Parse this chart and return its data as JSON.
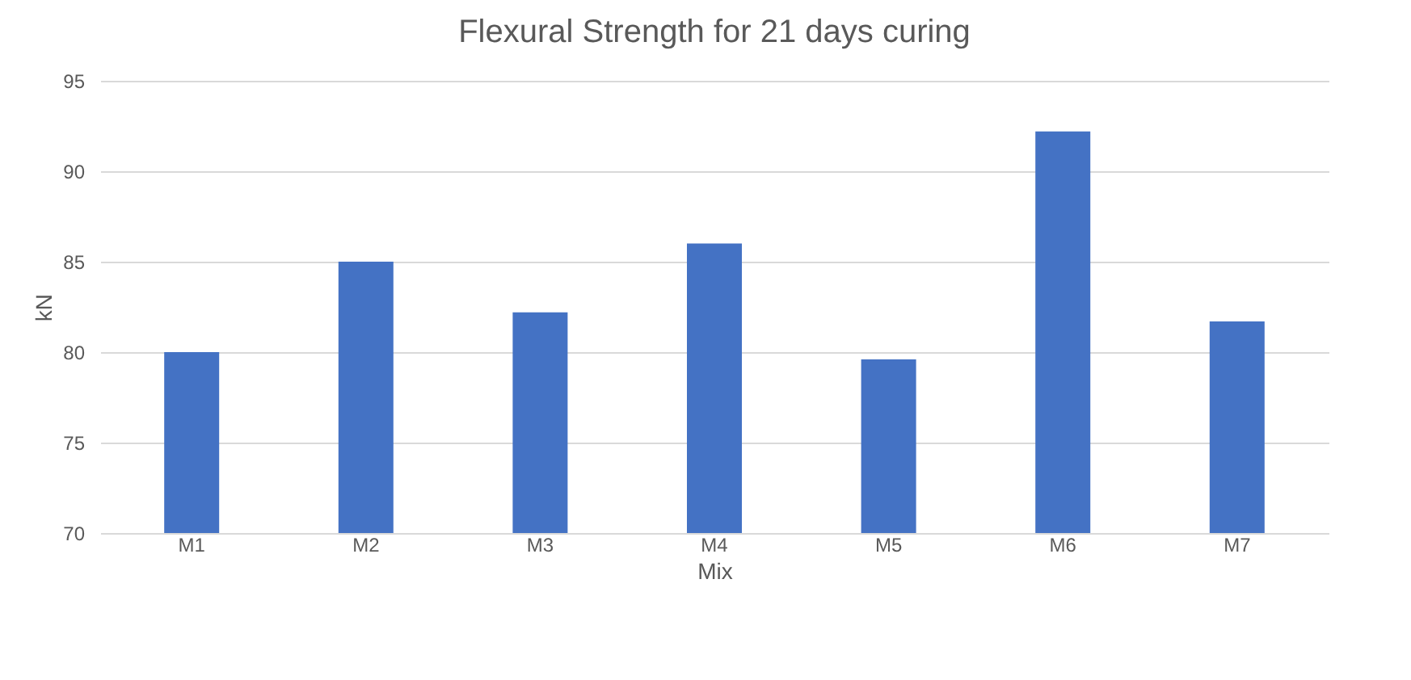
{
  "chart_data": {
    "type": "bar",
    "title": "Flexural Strength for 21 days curing",
    "xlabel": "Mix",
    "ylabel": "kN",
    "categories": [
      "M1",
      "M2",
      "M3",
      "M4",
      "M5",
      "M6",
      "M7"
    ],
    "values": [
      80,
      85,
      82.2,
      86,
      79.6,
      92.2,
      81.7
    ],
    "color": "#4472c4",
    "ylim": [
      70,
      95
    ],
    "yticks": [
      70,
      75,
      80,
      85,
      90,
      95
    ],
    "grid": "y"
  }
}
